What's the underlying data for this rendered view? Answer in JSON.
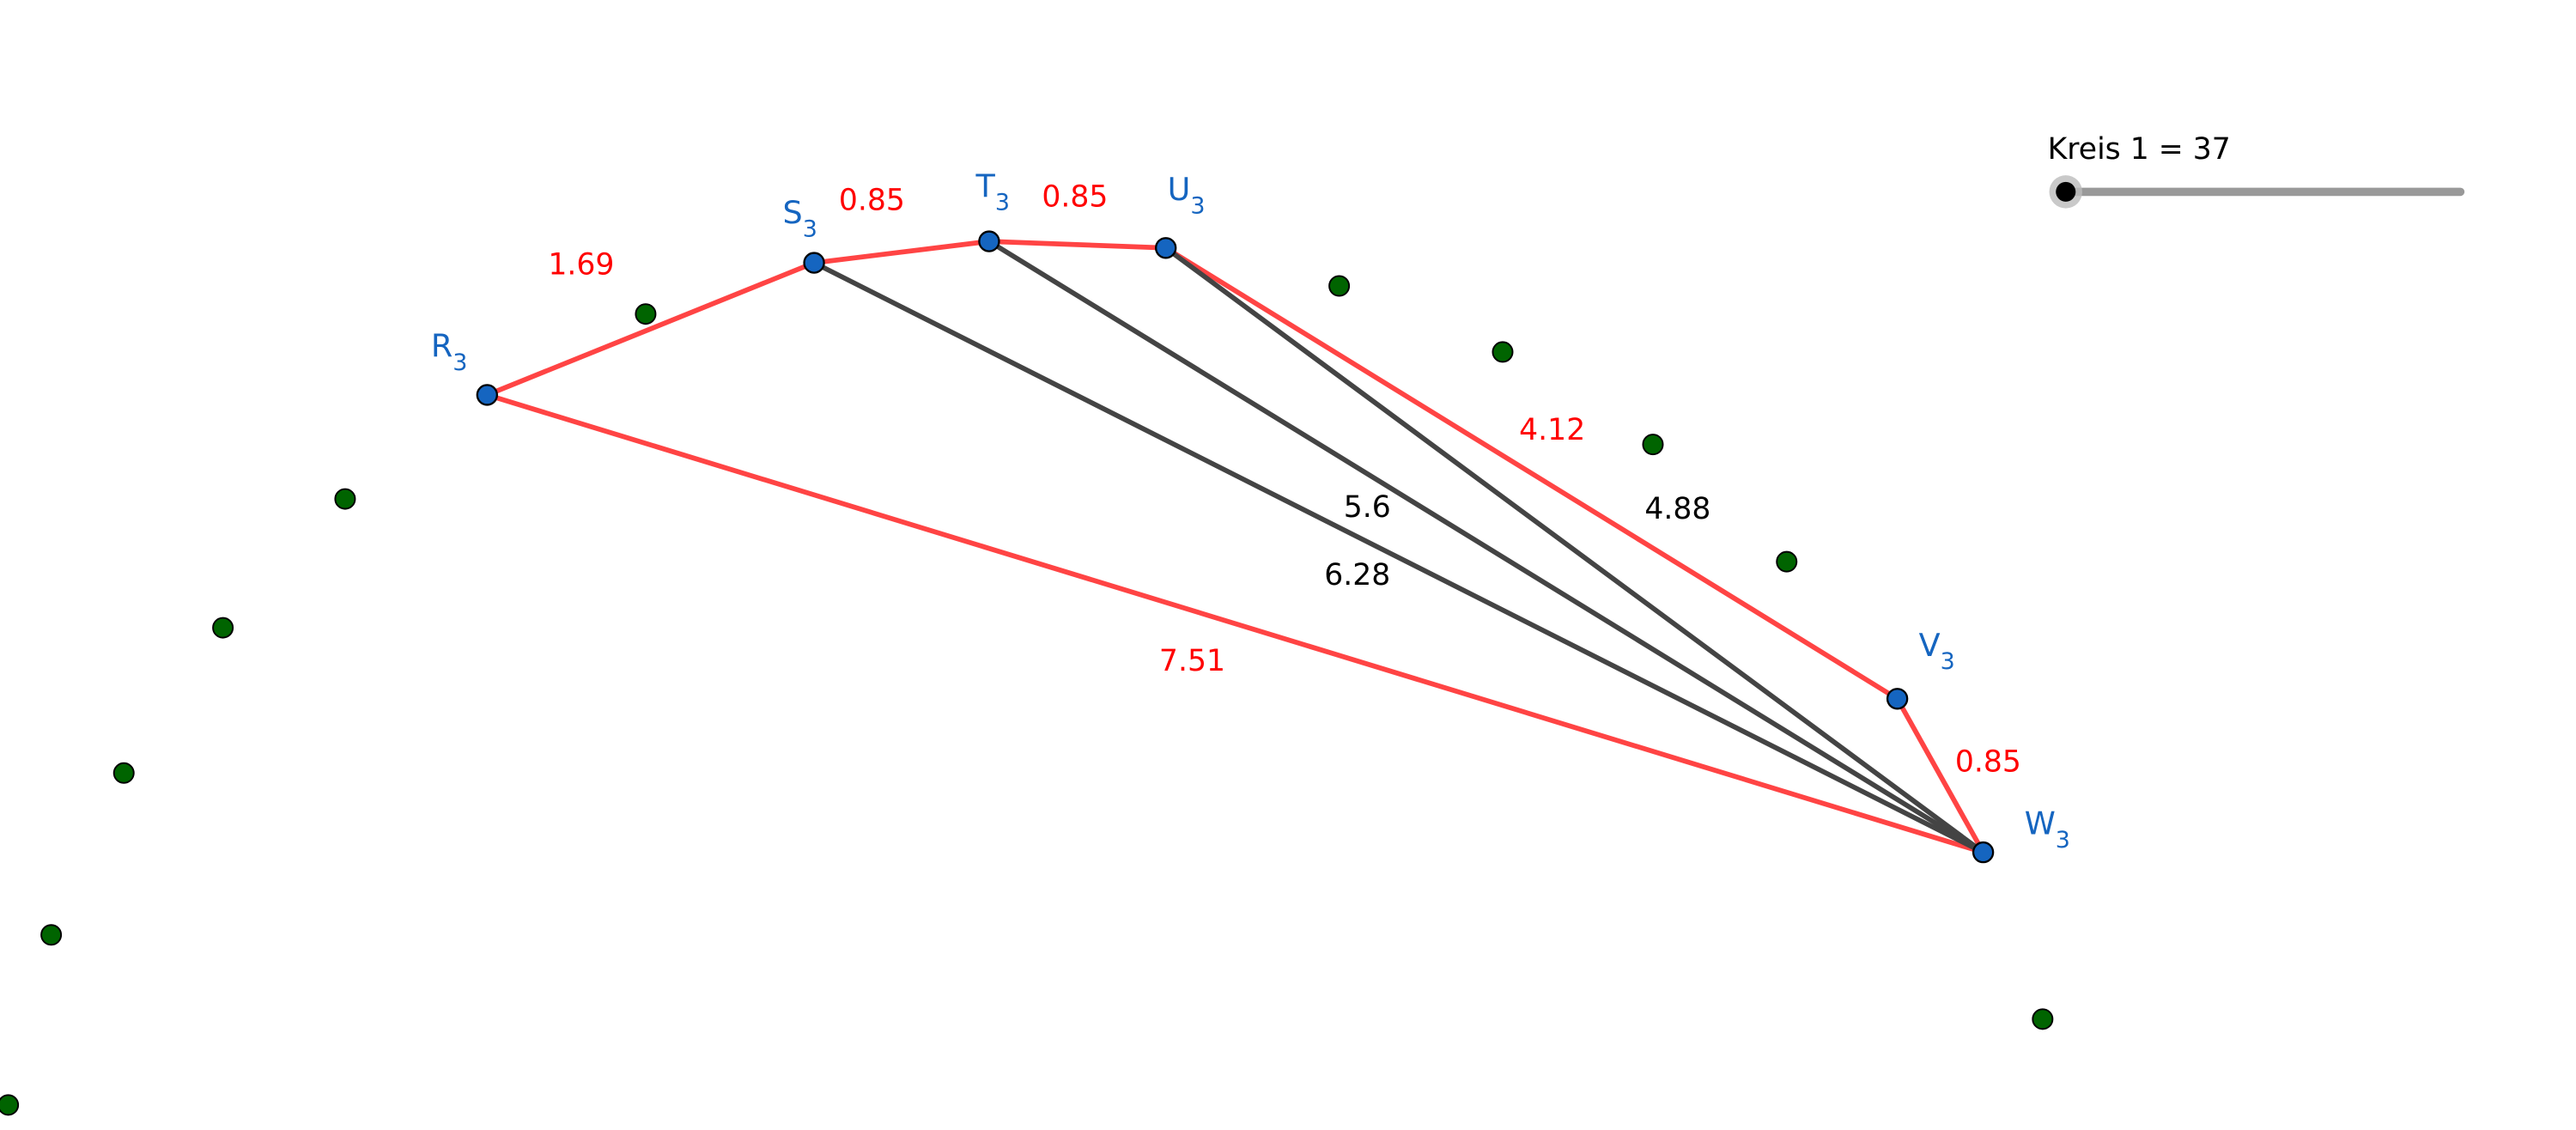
{
  "slider": {
    "label": "Kreis 1 = 37"
  },
  "points": [
    {
      "name": "R",
      "index": "3"
    },
    {
      "name": "S",
      "index": "3"
    },
    {
      "name": "T",
      "index": "3"
    },
    {
      "name": "U",
      "index": "3"
    },
    {
      "name": "V",
      "index": "3"
    },
    {
      "name": "W",
      "index": "3"
    }
  ],
  "segments": [
    {
      "label": 1.69
    },
    {
      "label": 0.85
    },
    {
      "label": 0.85
    },
    {
      "label": 4.12
    },
    {
      "label": 0.85
    },
    {
      "label": 7.51
    },
    {
      "label": 6.28
    },
    {
      "label": 5.6
    },
    {
      "label": 4.88
    }
  ]
}
